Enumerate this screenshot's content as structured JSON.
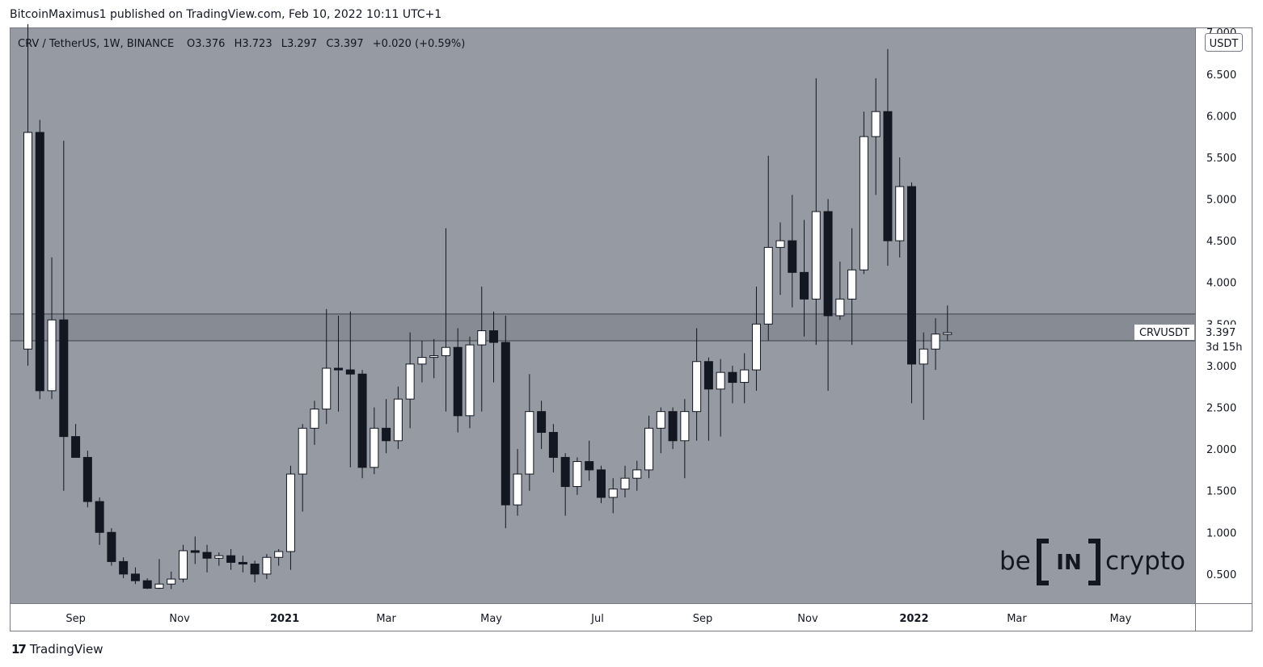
{
  "header": {
    "text": "BitcoinMaximus1 published on TradingView.com, Feb 10, 2022 10:11 UTC+1"
  },
  "footer": {
    "brand": "TradingView",
    "logo_glyph": "17"
  },
  "watermark": {
    "left": "be",
    "bracket_text": "IN",
    "right": "crypto"
  },
  "colors": {
    "plot_bg": "#959aa3",
    "band": "#878b94",
    "bull": "#ffffff",
    "bear": "#131722",
    "line": "#131722"
  },
  "chart_data": {
    "type": "candlestick",
    "title": "CRV / TetherUS, 1W, BINANCE",
    "ohlc_legend": {
      "o_label": "O",
      "o_value": "3.376",
      "h_label": "H",
      "h_value": "3.723",
      "l_label": "L",
      "l_value": "3.297",
      "c_label": "C",
      "c_value": "3.397",
      "change": "+0.020 (+0.59%)"
    },
    "currency_label": "USDT",
    "ylim": [
      0.15,
      7.05
    ],
    "y_ticks": [
      "0.500",
      "1.000",
      "1.500",
      "2.000",
      "2.500",
      "3.000",
      "3.500",
      "4.000",
      "4.500",
      "5.000",
      "5.500",
      "6.000",
      "6.500",
      "7.000"
    ],
    "x_tick_labels": [
      {
        "label": "Sep",
        "bold": false,
        "index": 4
      },
      {
        "label": "Nov",
        "bold": false,
        "index": 12.7
      },
      {
        "label": "2021",
        "bold": true,
        "index": 21.5
      },
      {
        "label": "Mar",
        "bold": false,
        "index": 30
      },
      {
        "label": "May",
        "bold": false,
        "index": 38.8
      },
      {
        "label": "Jul",
        "bold": false,
        "index": 47.7
      },
      {
        "label": "Sep",
        "bold": false,
        "index": 56.5
      },
      {
        "label": "Nov",
        "bold": false,
        "index": 65.3
      },
      {
        "label": "2022",
        "bold": true,
        "index": 74.2
      },
      {
        "label": "Mar",
        "bold": false,
        "index": 82.8
      },
      {
        "label": "May",
        "bold": false,
        "index": 91.5
      }
    ],
    "resistance_band": [
      3.3,
      3.62
    ],
    "price_label": {
      "symbol": "CRVUSDT",
      "price": "3.397",
      "countdown": "3d 15h"
    },
    "candles": [
      [
        3.2,
        7.1,
        3.0,
        5.8
      ],
      [
        5.8,
        5.95,
        2.6,
        2.7
      ],
      [
        2.7,
        4.3,
        2.6,
        3.55
      ],
      [
        3.55,
        5.7,
        1.5,
        2.15
      ],
      [
        2.15,
        2.3,
        1.9,
        1.9
      ],
      [
        1.9,
        1.98,
        1.3,
        1.37
      ],
      [
        1.37,
        1.42,
        0.85,
        1.0
      ],
      [
        1.0,
        1.05,
        0.6,
        0.65
      ],
      [
        0.65,
        0.7,
        0.45,
        0.5
      ],
      [
        0.5,
        0.58,
        0.38,
        0.42
      ],
      [
        0.42,
        0.45,
        0.32,
        0.33
      ],
      [
        0.33,
        0.68,
        0.32,
        0.38
      ],
      [
        0.38,
        0.53,
        0.32,
        0.44
      ],
      [
        0.44,
        0.85,
        0.4,
        0.78
      ],
      [
        0.78,
        0.95,
        0.62,
        0.76
      ],
      [
        0.76,
        0.85,
        0.52,
        0.69
      ],
      [
        0.69,
        0.76,
        0.6,
        0.72
      ],
      [
        0.72,
        0.8,
        0.55,
        0.64
      ],
      [
        0.64,
        0.72,
        0.52,
        0.62
      ],
      [
        0.62,
        0.66,
        0.4,
        0.5
      ],
      [
        0.5,
        0.74,
        0.44,
        0.7
      ],
      [
        0.7,
        0.8,
        0.6,
        0.77
      ],
      [
        0.77,
        1.8,
        0.55,
        1.7
      ],
      [
        1.7,
        2.3,
        1.25,
        2.25
      ],
      [
        2.25,
        2.58,
        2.05,
        2.48
      ],
      [
        2.48,
        3.68,
        2.3,
        2.97
      ],
      [
        2.97,
        3.6,
        2.45,
        2.95
      ],
      [
        2.95,
        3.65,
        1.78,
        2.9
      ],
      [
        2.9,
        2.95,
        1.65,
        1.78
      ],
      [
        1.78,
        2.5,
        1.7,
        2.25
      ],
      [
        2.25,
        2.6,
        1.95,
        2.1
      ],
      [
        2.1,
        2.75,
        2.0,
        2.6
      ],
      [
        2.6,
        3.4,
        2.25,
        3.02
      ],
      [
        3.02,
        3.3,
        2.8,
        3.1
      ],
      [
        3.1,
        3.32,
        2.85,
        3.12
      ],
      [
        3.12,
        4.65,
        2.45,
        3.22
      ],
      [
        3.22,
        3.45,
        2.2,
        2.4
      ],
      [
        2.4,
        3.35,
        2.25,
        3.25
      ],
      [
        3.25,
        3.95,
        2.45,
        3.42
      ],
      [
        3.42,
        3.65,
        2.8,
        3.28
      ],
      [
        3.28,
        3.6,
        1.05,
        1.33
      ],
      [
        1.33,
        2.0,
        1.2,
        1.7
      ],
      [
        1.7,
        2.9,
        1.5,
        2.45
      ],
      [
        2.45,
        2.58,
        2.0,
        2.2
      ],
      [
        2.2,
        2.3,
        1.72,
        1.9
      ],
      [
        1.9,
        1.95,
        1.2,
        1.55
      ],
      [
        1.55,
        1.9,
        1.45,
        1.85
      ],
      [
        1.85,
        2.1,
        1.62,
        1.75
      ],
      [
        1.75,
        1.8,
        1.35,
        1.42
      ],
      [
        1.42,
        1.65,
        1.23,
        1.52
      ],
      [
        1.52,
        1.8,
        1.42,
        1.65
      ],
      [
        1.65,
        1.86,
        1.5,
        1.75
      ],
      [
        1.75,
        2.4,
        1.65,
        2.25
      ],
      [
        2.25,
        2.5,
        1.95,
        2.45
      ],
      [
        2.45,
        2.5,
        2.0,
        2.1
      ],
      [
        2.1,
        2.6,
        1.65,
        2.45
      ],
      [
        2.45,
        3.45,
        2.1,
        3.05
      ],
      [
        3.05,
        3.1,
        2.1,
        2.72
      ],
      [
        2.72,
        3.08,
        2.15,
        2.92
      ],
      [
        2.92,
        3.0,
        2.55,
        2.8
      ],
      [
        2.8,
        3.15,
        2.55,
        2.95
      ],
      [
        2.95,
        3.95,
        2.7,
        3.5
      ],
      [
        3.5,
        5.52,
        3.3,
        4.42
      ],
      [
        4.42,
        4.72,
        3.85,
        4.5
      ],
      [
        4.5,
        5.05,
        3.7,
        4.12
      ],
      [
        4.12,
        4.75,
        3.35,
        3.8
      ],
      [
        3.8,
        6.45,
        3.25,
        4.85
      ],
      [
        4.85,
        5.0,
        2.7,
        3.6
      ],
      [
        3.6,
        4.25,
        3.55,
        3.8
      ],
      [
        3.8,
        4.65,
        3.25,
        4.15
      ],
      [
        4.15,
        6.05,
        4.1,
        5.75
      ],
      [
        5.75,
        6.45,
        5.05,
        6.05
      ],
      [
        6.05,
        6.8,
        4.2,
        4.5
      ],
      [
        4.5,
        5.5,
        4.3,
        5.15
      ],
      [
        5.15,
        5.2,
        2.55,
        3.02
      ],
      [
        3.02,
        3.4,
        2.35,
        3.2
      ],
      [
        3.2,
        3.57,
        2.95,
        3.38
      ],
      [
        3.376,
        3.723,
        3.297,
        3.397
      ]
    ]
  }
}
